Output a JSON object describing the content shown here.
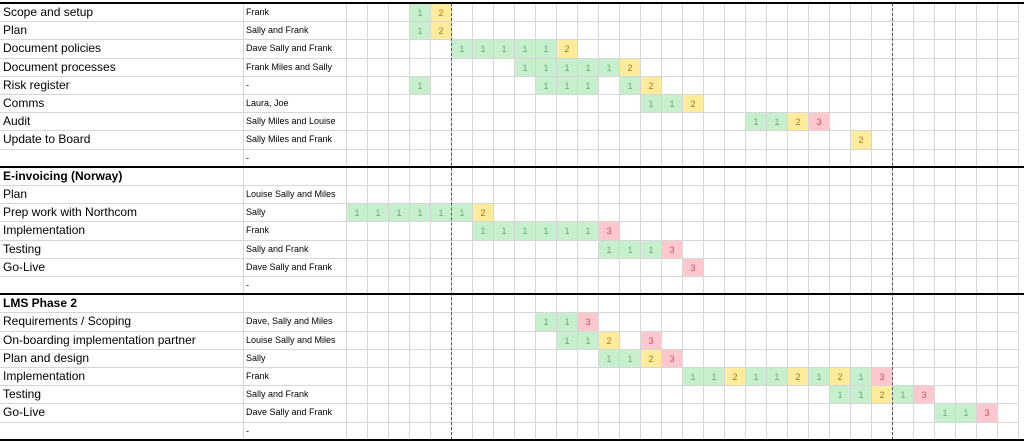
{
  "rows": [
    {
      "task": "Scope and setup",
      "owner": "Frank",
      "cells": [
        [
          3,
          "1",
          1
        ],
        [
          4,
          "2",
          2
        ]
      ]
    },
    {
      "task": "Plan",
      "owner": "Sally and Frank",
      "cells": [
        [
          3,
          "1",
          1
        ],
        [
          4,
          "2",
          2
        ]
      ]
    },
    {
      "task": "Document policies",
      "owner": "Dave Sally and Frank",
      "cells": [
        [
          5,
          "1",
          1
        ],
        [
          6,
          "1",
          1
        ],
        [
          7,
          "1",
          1
        ],
        [
          8,
          "1",
          1
        ],
        [
          9,
          "1",
          1
        ],
        [
          10,
          "2",
          2
        ]
      ]
    },
    {
      "task": "Document processes",
      "owner": "Frank Miles and Sally",
      "cells": [
        [
          8,
          "1",
          1
        ],
        [
          9,
          "1",
          1
        ],
        [
          10,
          "1",
          1
        ],
        [
          11,
          "1",
          1
        ],
        [
          12,
          "1",
          1
        ],
        [
          13,
          "2",
          2
        ]
      ]
    },
    {
      "task": "Risk register",
      "owner": "-",
      "cells": [
        [
          3,
          "1",
          1
        ],
        [
          9,
          "1",
          1
        ],
        [
          10,
          "1",
          1
        ],
        [
          11,
          "1",
          1
        ],
        [
          13,
          "1",
          1
        ],
        [
          14,
          "2",
          2
        ]
      ]
    },
    {
      "task": "Comms",
      "owner": "Laura, Joe",
      "cells": [
        [
          14,
          "1",
          1
        ],
        [
          15,
          "1",
          1
        ],
        [
          16,
          "2",
          2
        ]
      ]
    },
    {
      "task": "Audit",
      "owner": "Sally Miles and Louise",
      "cells": [
        [
          19,
          "1",
          1
        ],
        [
          20,
          "1",
          1
        ],
        [
          21,
          "2",
          2
        ],
        [
          22,
          "3",
          3
        ]
      ]
    },
    {
      "task": "Update to Board",
      "owner": "Sally Miles and Frank",
      "cells": [
        [
          24,
          "2",
          2
        ]
      ]
    },
    {
      "task": "",
      "owner": "-",
      "cells": []
    },
    {
      "task": "E-invoicing (Norway)",
      "owner": "",
      "section": true,
      "cells": []
    },
    {
      "task": "Plan",
      "owner": "Louise Sally and Miles",
      "cells": []
    },
    {
      "task": "Prep work with Northcom",
      "owner": "Sally",
      "cells": [
        [
          0,
          "1",
          1
        ],
        [
          1,
          "1",
          1
        ],
        [
          2,
          "1",
          1
        ],
        [
          3,
          "1",
          1
        ],
        [
          4,
          "1",
          1
        ],
        [
          5,
          "1",
          1
        ],
        [
          6,
          "2",
          2
        ]
      ]
    },
    {
      "task": "Implementation",
      "owner": "Frank",
      "cells": [
        [
          6,
          "1",
          1
        ],
        [
          7,
          "1",
          1
        ],
        [
          8,
          "1",
          1
        ],
        [
          9,
          "1",
          1
        ],
        [
          10,
          "1",
          1
        ],
        [
          11,
          "1",
          1
        ],
        [
          12,
          "3",
          3
        ]
      ]
    },
    {
      "task": "Testing",
      "owner": "Sally and Frank",
      "cells": [
        [
          12,
          "1",
          1
        ],
        [
          13,
          "1",
          1
        ],
        [
          14,
          "1",
          1
        ],
        [
          15,
          "3",
          3
        ]
      ]
    },
    {
      "task": "Go-Live",
      "owner": "Dave Sally and Frank",
      "cells": [
        [
          16,
          "3",
          3
        ]
      ]
    },
    {
      "task": "",
      "owner": "-",
      "cells": []
    },
    {
      "task": "LMS Phase 2",
      "owner": "",
      "section": true,
      "cells": []
    },
    {
      "task": "Requirements / Scoping",
      "owner": "Dave, Sally and Miles",
      "cells": [
        [
          9,
          "1",
          1
        ],
        [
          10,
          "1",
          1
        ],
        [
          11,
          "3",
          3
        ]
      ]
    },
    {
      "task": "On-boarding implementation partner",
      "owner": "Louise Sally and Miles",
      "cells": [
        [
          10,
          "1",
          1
        ],
        [
          11,
          "1",
          1
        ],
        [
          12,
          "2",
          2
        ],
        [
          14,
          "3",
          3
        ]
      ]
    },
    {
      "task": "Plan and design",
      "owner": "Sally",
      "cells": [
        [
          12,
          "1",
          1
        ],
        [
          13,
          "1",
          1
        ],
        [
          14,
          "2",
          2
        ],
        [
          15,
          "3",
          3
        ]
      ]
    },
    {
      "task": "Implementation",
      "owner": "Frank",
      "cells": [
        [
          16,
          "1",
          1
        ],
        [
          17,
          "1",
          1
        ],
        [
          18,
          "2",
          2
        ],
        [
          19,
          "1",
          1
        ],
        [
          20,
          "1",
          1
        ],
        [
          21,
          "2",
          2
        ],
        [
          22,
          "1",
          1
        ],
        [
          23,
          "2",
          2
        ],
        [
          24,
          "1",
          1
        ],
        [
          25,
          "3",
          3
        ]
      ]
    },
    {
      "task": "Testing",
      "owner": "Sally and Frank",
      "cells": [
        [
          23,
          "1",
          1
        ],
        [
          24,
          "1",
          1
        ],
        [
          25,
          "2",
          2
        ],
        [
          26,
          "1",
          1
        ],
        [
          27,
          "3",
          3
        ]
      ]
    },
    {
      "task": "Go-Live",
      "owner": "Dave Sally and Frank",
      "cells": [
        [
          28,
          "1",
          1
        ],
        [
          29,
          "1",
          1
        ],
        [
          30,
          "3",
          3
        ]
      ]
    },
    {
      "task": "",
      "owner": "-",
      "cells": []
    }
  ]
}
